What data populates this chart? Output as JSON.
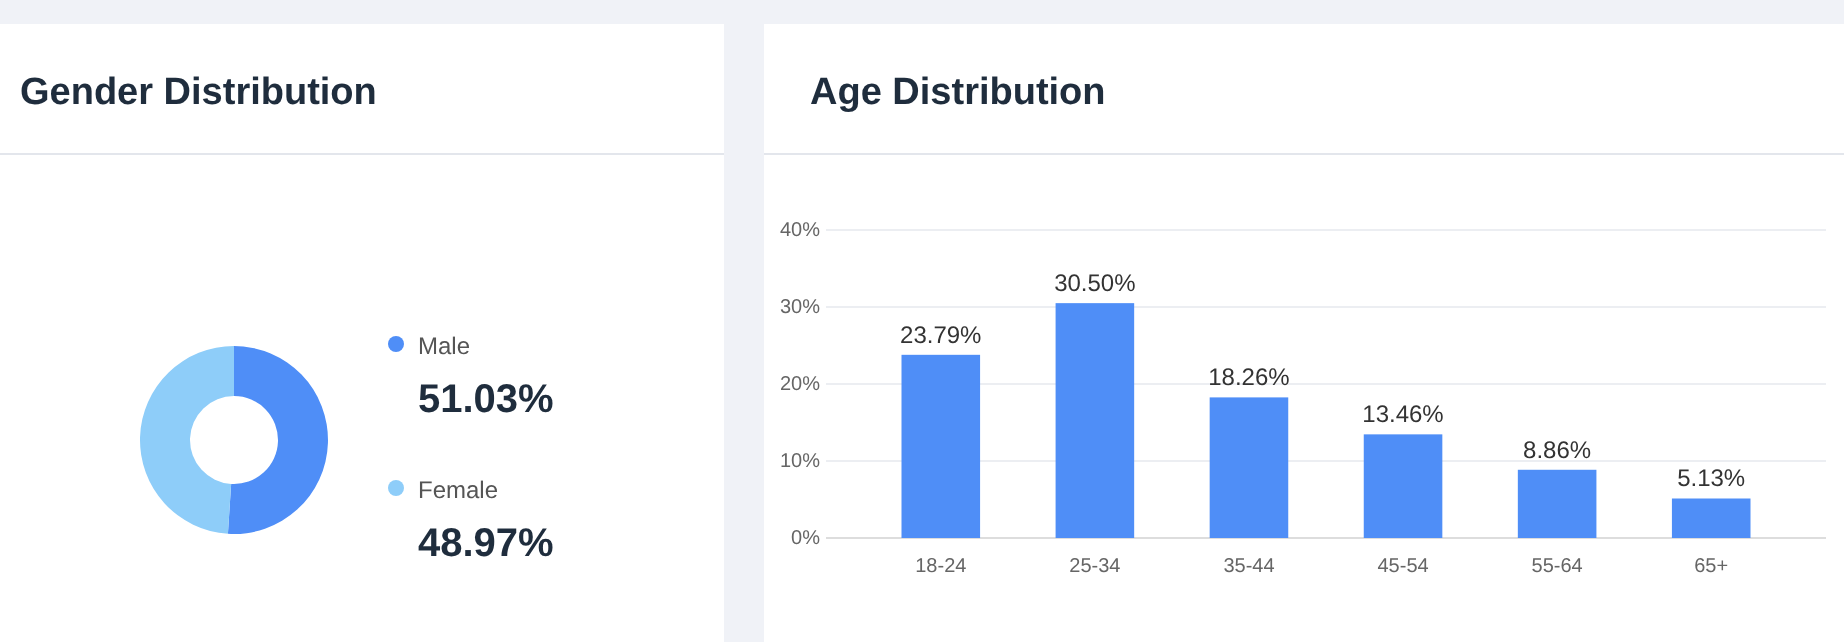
{
  "chart_data": [
    {
      "type": "donut",
      "title": "Gender Distribution",
      "categories": [
        "Male",
        "Female"
      ],
      "values": [
        51.03,
        48.97
      ],
      "colors": [
        "#4f8ef7",
        "#8ecdf9"
      ],
      "value_labels": [
        "51.03%",
        "48.97%"
      ],
      "legend": "right"
    },
    {
      "type": "bar",
      "title": "Age Distribution",
      "categories": [
        "18-24",
        "25-34",
        "35-44",
        "45-54",
        "55-64",
        "65+"
      ],
      "values": [
        23.79,
        30.5,
        18.26,
        13.46,
        8.86,
        5.13
      ],
      "color": "#4f8ef7",
      "value_labels": [
        "23.79%",
        "30.50%",
        "18.26%",
        "13.46%",
        "8.86%",
        "5.13%"
      ],
      "ylim": [
        0,
        40
      ],
      "yticks": [
        {
          "value": 0,
          "label": "0%"
        },
        {
          "value": 10,
          "label": "10%"
        },
        {
          "value": 20,
          "label": "20%"
        },
        {
          "value": 30,
          "label": "30%"
        },
        {
          "value": 40,
          "label": "40%"
        }
      ],
      "grid": "y"
    }
  ]
}
